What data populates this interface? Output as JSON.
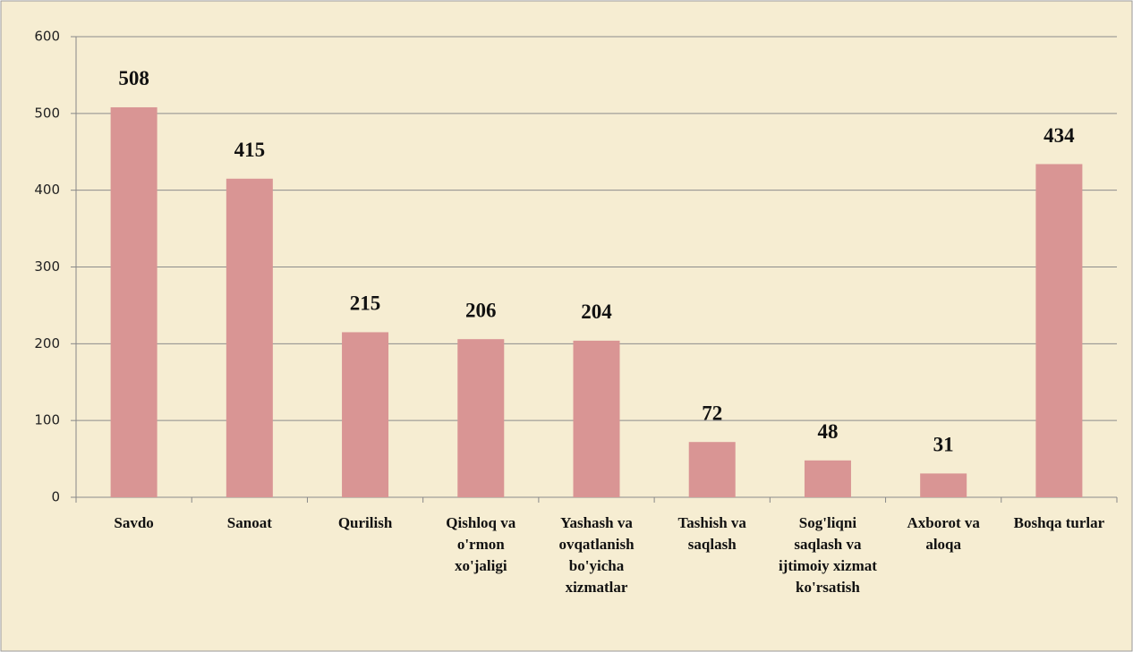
{
  "chart_data": {
    "type": "bar",
    "categories": [
      "Savdo",
      "Sanoat",
      "Qurilish",
      "Qishloq va o'rmon xo'jaligi",
      "Yashash va ovqatlanish bo'yicha xizmatlar",
      "Tashish va saqlash",
      "Sog'liqni saqlash va ijtimoiy xizmat ko'rsatish",
      "Axborot va aloqa",
      "Boshqa turlar"
    ],
    "values": [
      508,
      415,
      215,
      206,
      204,
      72,
      48,
      31,
      434
    ],
    "color": "#d99594",
    "ylim": [
      0,
      600
    ],
    "yticks": [
      0,
      100,
      200,
      300,
      400,
      500,
      600
    ],
    "grid": true
  }
}
